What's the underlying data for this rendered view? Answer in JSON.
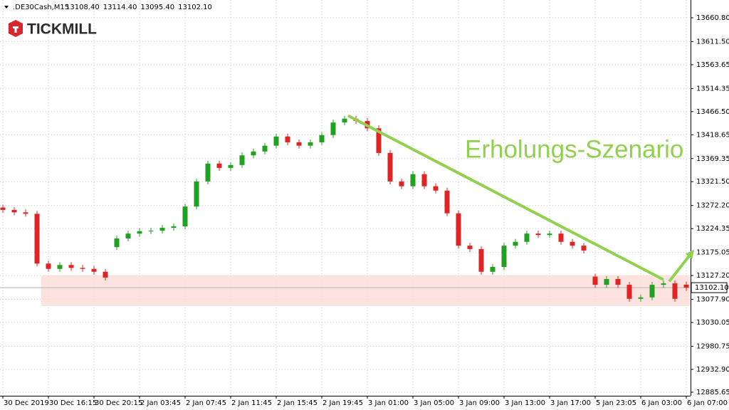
{
  "chart_data": {
    "type": "candlestick",
    "symbol": ".DE30Cash,M15",
    "header_values": [
      "13108.40",
      "13114.40",
      "13095.40",
      "13102.10"
    ],
    "logo": "TICKMILL",
    "annotation": "Erholungs-Szenario",
    "up_color": "#22a022",
    "down_color": "#e02424",
    "annotation_color": "#92d050",
    "zone_color": "#fbdcd8",
    "grid": true,
    "open": [
      13268,
      13263,
      13258,
      13255,
      13152,
      13141,
      13149,
      13143,
      13141,
      13135,
      13186,
      13204,
      13214,
      13219,
      13220,
      13226,
      13229,
      13270,
      13322,
      13359,
      13350,
      13356,
      13376,
      13384,
      13396,
      13415,
      13403,
      13396,
      13403,
      13418,
      13444,
      13452,
      13447,
      13432,
      13381,
      13322,
      13312,
      13337,
      13312,
      13303,
      13256,
      13189,
      13182,
      13135,
      13145,
      13189,
      13197,
      13214,
      13211,
      13214,
      13197,
      13189,
      13125,
      13108,
      13120,
      13108,
      13079,
      13082,
      13108,
      13111,
      13108.4
    ],
    "high": [
      13274,
      13269,
      13264,
      13261,
      13158,
      13155,
      13155,
      13149,
      13147,
      13141,
      13210,
      13220,
      13225,
      13226,
      13232,
      13235,
      13276,
      13328,
      13365,
      13365,
      13362,
      13382,
      13390,
      13402,
      13421,
      13421,
      13409,
      13409,
      13424,
      13450,
      13458,
      13458,
      13453,
      13438,
      13387,
      13328,
      13343,
      13343,
      13318,
      13309,
      13262,
      13195,
      13188,
      13151,
      13195,
      13203,
      13220,
      13220,
      13220,
      13220,
      13203,
      13195,
      13131,
      13126,
      13126,
      13114,
      13088,
      13114,
      13117,
      13117,
      13114.4
    ],
    "low": [
      13257,
      13252,
      13249,
      13146,
      13135,
      13135,
      13137,
      13135,
      13129,
      13117,
      13180,
      13198,
      13208,
      13213,
      13214,
      13220,
      13223,
      13264,
      13316,
      13344,
      13344,
      13350,
      13370,
      13378,
      13390,
      13397,
      13390,
      13390,
      13397,
      13412,
      13438,
      13441,
      13426,
      13375,
      13316,
      13306,
      13306,
      13306,
      13297,
      13250,
      13183,
      13176,
      13129,
      13129,
      13139,
      13183,
      13191,
      13205,
      13205,
      13191,
      13183,
      13173,
      13102,
      13102,
      13102,
      13073,
      13073,
      13076,
      13102,
      13073,
      13095.4
    ],
    "close": [
      13263,
      13258,
      13255,
      13152,
      13141,
      13149,
      13143,
      13141,
      13135,
      13123,
      13204,
      13214,
      13219,
      13220,
      13226,
      13229,
      13270,
      13322,
      13359,
      13350,
      13356,
      13376,
      13384,
      13396,
      13415,
      13403,
      13396,
      13403,
      13418,
      13444,
      13452,
      13447,
      13432,
      13381,
      13322,
      13312,
      13337,
      13312,
      13303,
      13256,
      13189,
      13182,
      13135,
      13145,
      13189,
      13197,
      13214,
      13211,
      13214,
      13197,
      13189,
      13179,
      13108,
      13120,
      13108,
      13079,
      13082,
      13108,
      13111,
      13079,
      13102.1
    ],
    "last_price": {
      "value": 13102.1,
      "label": "13102.10"
    },
    "zone": [
      13064,
      13128
    ],
    "trend_line": {
      "x": [
        30.4,
        57.9
      ],
      "y": [
        13457,
        13120
      ]
    },
    "arrow": {
      "x": [
        58.5,
        60.7
      ],
      "y": [
        13115,
        13181
      ]
    },
    "xlim": [
      -0.25,
      60.375
    ],
    "ylim": [
      12878.3,
      13697.6
    ],
    "xticks": [
      {
        "value": 0,
        "label": "30 Dec 2019"
      },
      {
        "value": 4,
        "label": "30 Dec 16:15"
      },
      {
        "value": 8,
        "label": "30 Dec 20:15"
      },
      {
        "value": 12,
        "label": "2 Jan 03:45"
      },
      {
        "value": 16,
        "label": "2 Jan 07:45"
      },
      {
        "value": 20,
        "label": "2 Jan 11:45"
      },
      {
        "value": 24,
        "label": "2 Jan 15:45"
      },
      {
        "value": 28,
        "label": "2 Jan 19:45"
      },
      {
        "value": 32,
        "label": "3 Jan 01:00"
      },
      {
        "value": 36,
        "label": "3 Jan 05:00"
      },
      {
        "value": 40,
        "label": "3 Jan 09:00"
      },
      {
        "value": 44,
        "label": "3 Jan 13:00"
      },
      {
        "value": 48,
        "label": "3 Jan 17:00"
      },
      {
        "value": 52,
        "label": "5 Jan 23:05"
      },
      {
        "value": 56,
        "label": "6 Jan 03:00"
      },
      {
        "value": 60,
        "label": "6 Jan 07:00"
      }
    ],
    "yticks": [
      {
        "value": 13660.8,
        "label": "13660.80"
      },
      {
        "value": 13611.5,
        "label": "13611.50"
      },
      {
        "value": 13563.65,
        "label": "13563.65"
      },
      {
        "value": 13514.35,
        "label": "13514.35"
      },
      {
        "value": 13466.5,
        "label": "13466.50"
      },
      {
        "value": 13418.65,
        "label": "13418.65"
      },
      {
        "value": 13369.35,
        "label": "13369.35"
      },
      {
        "value": 13321.5,
        "label": "13321.50"
      },
      {
        "value": 13272.2,
        "label": "13272.20"
      },
      {
        "value": 13224.35,
        "label": "13224.35"
      },
      {
        "value": 13175.05,
        "label": "13175.05"
      },
      {
        "value": 13127.2,
        "label": "13127.20"
      },
      {
        "value": 13077.9,
        "label": "13077.90"
      },
      {
        "value": 13030.05,
        "label": "13030.05"
      },
      {
        "value": 12980.75,
        "label": "12980.75"
      },
      {
        "value": 12932.9,
        "label": "12932.90"
      },
      {
        "value": 12885.65,
        "label": "12885.65"
      }
    ]
  }
}
